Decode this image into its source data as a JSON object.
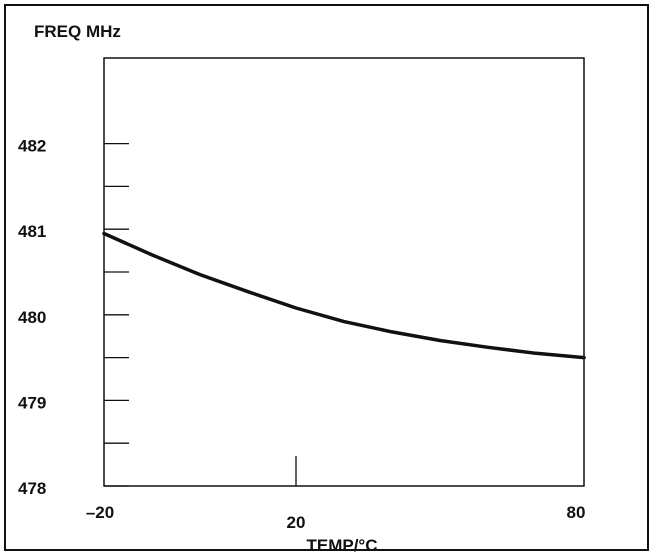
{
  "chart_data": {
    "type": "line",
    "ylabel": "FREQ MHz",
    "xlabel": "TEMP/°C",
    "xlim": [
      -20,
      80
    ],
    "ylim": [
      478,
      483
    ],
    "x_ticks": [
      -20,
      20,
      80
    ],
    "x_tick_labels": [
      "–20",
      "20",
      "80"
    ],
    "y_ticks": [
      478,
      479,
      480,
      481,
      482
    ],
    "y_tick_labels": [
      "478",
      "479",
      "480",
      "481",
      "482"
    ],
    "y_minor_ticks": [
      478.5,
      479.5,
      480.5,
      481.5
    ],
    "grid": false,
    "series": [
      {
        "x": [
          -20,
          -10,
          0,
          10,
          20,
          30,
          40,
          50,
          60,
          70,
          80
        ],
        "y": [
          480.95,
          480.7,
          480.47,
          480.27,
          480.08,
          479.92,
          479.8,
          479.7,
          479.62,
          479.55,
          479.5
        ]
      }
    ],
    "colors": {
      "line": "#111111",
      "axis": "#111111"
    }
  }
}
